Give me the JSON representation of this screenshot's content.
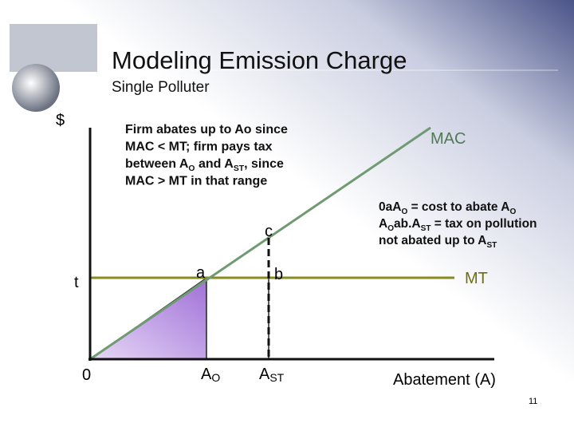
{
  "header": {
    "title": "Modeling Emission Charge",
    "subtitle": "Single Polluter"
  },
  "diagram": {
    "labels": {
      "dollar": "$",
      "origin": "0",
      "t": "t",
      "a": "a",
      "b": "b",
      "c": "c",
      "mac": "MAC",
      "mt": "MT",
      "x_axis": "Abatement (A)",
      "ao": {
        "main": "A",
        "sub": "O"
      },
      "ast": {
        "main": "A",
        "sub": "ST"
      }
    },
    "annotations": [
      {
        "lines": [
          [
            {
              "text": "Firm abates up to Ao since"
            }
          ],
          [
            {
              "text": "MAC < MT; firm pays tax"
            }
          ],
          [
            {
              "text": "between A"
            },
            {
              "sub": "O"
            },
            {
              "text": " and A"
            },
            {
              "sub": "ST"
            },
            {
              "text": ", since"
            }
          ],
          [
            {
              "text": "MAC > MT in that range"
            }
          ]
        ]
      },
      {
        "lines": [
          [
            {
              "text": "0aA"
            },
            {
              "sub": "O"
            },
            {
              "text": " = cost to abate A"
            },
            {
              "sub": "O"
            }
          ],
          [
            {
              "text": "A"
            },
            {
              "sub": "O"
            },
            {
              "text": "ab.A"
            },
            {
              "sub": "ST"
            },
            {
              "text": " = tax on pollution"
            }
          ],
          [
            {
              "text": "not abated up to A"
            },
            {
              "sub": "ST"
            }
          ]
        ]
      }
    ]
  },
  "footer": {
    "page": "11"
  }
}
